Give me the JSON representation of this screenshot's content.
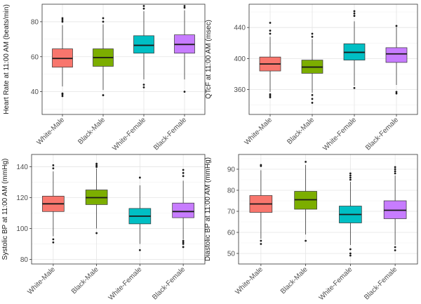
{
  "chart_data": [
    {
      "type": "box",
      "title": "",
      "xlabel": "",
      "ylabel": "Heart Rate at 11:00 AM (beats/min)",
      "ylim": [
        27,
        90
      ],
      "yticks": [
        40,
        60,
        80
      ],
      "ytick_labels": [
        "40",
        "60",
        "80"
      ],
      "categories": [
        "White-Male",
        "Black-Male",
        "White-Female",
        "Black-Female"
      ],
      "boxes": [
        {
          "name": "White-Male",
          "color": "#F8766D",
          "low": 43,
          "q1": 54,
          "median": 59,
          "q3": 64.5,
          "high": 78,
          "outliers": [
            37.5,
            38.5,
            39,
            80,
            81,
            82
          ]
        },
        {
          "name": "Black-Male",
          "color": "#7CAE00",
          "low": 41,
          "q1": 54.5,
          "median": 59.5,
          "q3": 64.5,
          "high": 78.5,
          "outliers": [
            38,
            80,
            82
          ]
        },
        {
          "name": "White-Female",
          "color": "#00BFC4",
          "low": 47,
          "q1": 62,
          "median": 66.5,
          "q3": 72,
          "high": 86,
          "outliers": [
            42.5,
            44,
            87.5,
            89
          ]
        },
        {
          "name": "Black-Female",
          "color": "#C77CFF",
          "low": 47,
          "q1": 62,
          "median": 67,
          "q3": 72.5,
          "high": 86.5,
          "outliers": [
            40,
            88,
            89
          ]
        }
      ]
    },
    {
      "type": "box",
      "title": "",
      "xlabel": "",
      "ylabel": "QTcF at 11:00 AM (msec)",
      "ylim": [
        328,
        470
      ],
      "yticks": [
        360,
        400,
        440
      ],
      "ytick_labels": [
        "360",
        "400",
        "440"
      ],
      "categories": [
        "White-Male",
        "Black-Male",
        "White-Female",
        "Black-Female"
      ],
      "boxes": [
        {
          "name": "White-Male",
          "color": "#F8766D",
          "low": 357,
          "q1": 384,
          "median": 393,
          "q3": 402,
          "high": 428,
          "outliers": [
            350,
            352,
            354,
            432,
            436,
            446
          ]
        },
        {
          "name": "Black-Male",
          "color": "#7CAE00",
          "low": 356,
          "q1": 381,
          "median": 389,
          "q3": 398,
          "high": 425,
          "outliers": [
            343,
            348,
            353,
            428,
            432
          ]
        },
        {
          "name": "White-Female",
          "color": "#00BFC4",
          "low": 365,
          "q1": 398,
          "median": 408,
          "q3": 419,
          "high": 448,
          "outliers": [
            362,
            455,
            458,
            461
          ]
        },
        {
          "name": "Black-Female",
          "color": "#C77CFF",
          "low": 366,
          "q1": 395,
          "median": 406,
          "q3": 414,
          "high": 440,
          "outliers": [
            355,
            357,
            442
          ]
        }
      ]
    },
    {
      "type": "box",
      "title": "",
      "xlabel": "",
      "ylabel": "Systolic BP at 11:00 AM (mmHg)",
      "ylim": [
        77,
        148
      ],
      "yticks": [
        80,
        100,
        120,
        140
      ],
      "ytick_labels": [
        "80",
        "100",
        "120",
        "140"
      ],
      "categories": [
        "White-Male",
        "Black-Male",
        "White-Female",
        "Black-Female"
      ],
      "boxes": [
        {
          "name": "White-Male",
          "color": "#F8766D",
          "low": 95,
          "q1": 111,
          "median": 116,
          "q3": 121,
          "high": 137,
          "outliers": [
            91,
            93,
            139,
            141
          ]
        },
        {
          "name": "Black-Male",
          "color": "#7CAE00",
          "low": 100,
          "q1": 115.5,
          "median": 120,
          "q3": 125,
          "high": 139,
          "outliers": [
            97,
            140,
            141,
            142
          ]
        },
        {
          "name": "White-Female",
          "color": "#00BFC4",
          "low": 90,
          "q1": 103,
          "median": 108,
          "q3": 113,
          "high": 128,
          "outliers": [
            86,
            133
          ]
        },
        {
          "name": "Black-Female",
          "color": "#C77CFF",
          "low": 93,
          "q1": 107,
          "median": 111,
          "q3": 116.5,
          "high": 131,
          "outliers": [
            88,
            90,
            91,
            92,
            134,
            136,
            138
          ]
        }
      ]
    },
    {
      "type": "box",
      "title": "",
      "xlabel": "",
      "ylabel": "Diastolic BP at 11:00 AM (mmHg)",
      "ylim": [
        45,
        97
      ],
      "yticks": [
        50,
        60,
        70,
        80,
        90
      ],
      "ytick_labels": [
        "50",
        "60",
        "70",
        "80",
        "90"
      ],
      "categories": [
        "White-Male",
        "Black-Male",
        "White-Female",
        "Black-Female"
      ],
      "boxes": [
        {
          "name": "White-Male",
          "color": "#F8766D",
          "low": 57,
          "q1": 69.5,
          "median": 73.5,
          "q3": 77.5,
          "high": 89.5,
          "outliers": [
            54.5,
            56,
            91.5,
            92
          ]
        },
        {
          "name": "Black-Male",
          "color": "#7CAE00",
          "low": 59,
          "q1": 71,
          "median": 75.5,
          "q3": 79.5,
          "high": 92,
          "outliers": [
            56,
            93.5
          ]
        },
        {
          "name": "White-Female",
          "color": "#00BFC4",
          "low": 54,
          "q1": 64.5,
          "median": 68.5,
          "q3": 72.5,
          "high": 84,
          "outliers": [
            49,
            50,
            52,
            85,
            86,
            87,
            88
          ]
        },
        {
          "name": "Black-Female",
          "color": "#C77CFF",
          "low": 54,
          "q1": 66.5,
          "median": 70.5,
          "q3": 75,
          "high": 87,
          "outliers": [
            51.5,
            53,
            88,
            89,
            90,
            91
          ]
        }
      ]
    }
  ]
}
